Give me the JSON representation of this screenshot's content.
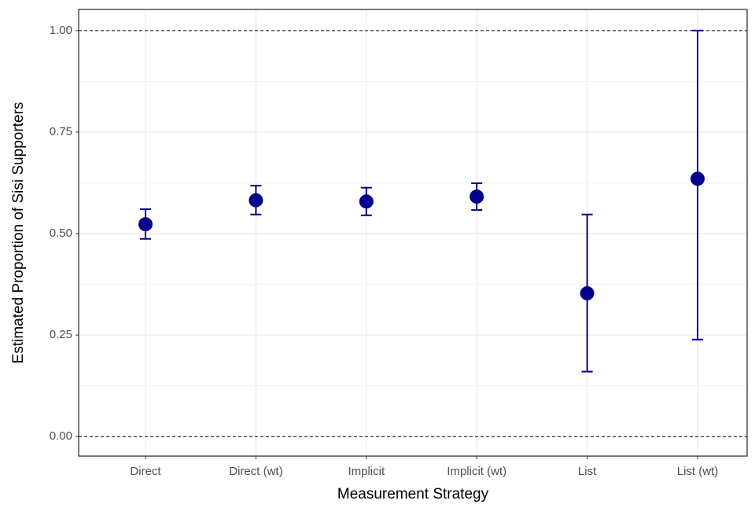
{
  "chart_data": {
    "type": "pointrange",
    "x_label": "Measurement Strategy",
    "y_label": "Estimated Proportion of Sisi Supporters",
    "categories": [
      "Direct",
      "Direct (wt)",
      "Implicit",
      "Implicit (wt)",
      "List",
      "List (wt)"
    ],
    "series": [
      {
        "color": "#00008b",
        "values": [
          0.523,
          0.582,
          0.579,
          0.591,
          0.353,
          0.635
        ],
        "lower": [
          0.487,
          0.547,
          0.545,
          0.558,
          0.16,
          0.239
        ],
        "upper": [
          0.56,
          0.618,
          0.613,
          0.624,
          0.547,
          1.0
        ]
      }
    ],
    "ylim": [
      -0.048,
      1.052
    ],
    "yticks": [
      {
        "value": 0,
        "label": "0.00"
      },
      {
        "value": 0.25,
        "label": "0.25"
      },
      {
        "value": 0.5,
        "label": "0.50"
      },
      {
        "value": 0.75,
        "label": "0.75"
      },
      {
        "value": 1,
        "label": "1.00"
      }
    ],
    "minor_yticks": [
      0.125,
      0.375,
      0.625,
      0.875
    ],
    "hlines": [
      0,
      1
    ],
    "grid": true
  }
}
